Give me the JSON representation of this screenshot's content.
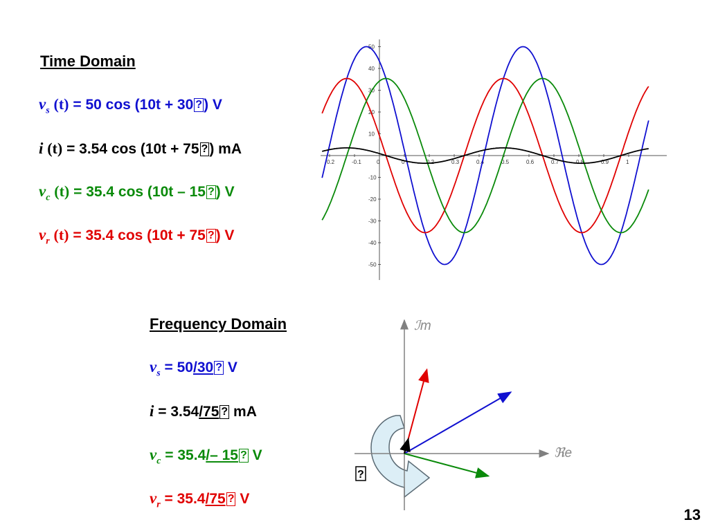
{
  "time_domain": {
    "heading": "Time Domain",
    "vs": {
      "var": "v",
      "sub": "s",
      "arg": "(t)",
      "expr": "= 50 cos (10t + 30",
      "glyph": "?",
      "unit": ") V"
    },
    "i": {
      "var": "i",
      "sub": "",
      "arg": "(t)",
      "expr": "= 3.54 cos (10t + 75",
      "glyph": "?",
      "unit": ") mA"
    },
    "vc": {
      "var": "v",
      "sub": "c",
      "arg": "(t)",
      "expr": "= 35.4 cos (10t – 15",
      "glyph": "?",
      "unit": ") V"
    },
    "vr": {
      "var": "v",
      "sub": "r",
      "arg": "(t)",
      "expr": "= 35.4 cos (10t + 75",
      "glyph": "?",
      "unit": ") V"
    }
  },
  "frequency_domain": {
    "heading": "Frequency Domain",
    "vs": {
      "var": "v",
      "sub": "s",
      "pre": "= 50",
      "angle": "/30",
      "glyph": "?",
      "unit": "V"
    },
    "i": {
      "var": "i",
      "sub": "",
      "pre": "= 3.54",
      "angle": "/75",
      "glyph": "?",
      "unit": "mA"
    },
    "vc": {
      "var": "v",
      "sub": "c",
      "pre": "= 35.4",
      "angle": "/– 15",
      "glyph": "?",
      "unit": "V"
    },
    "vr": {
      "var": "v",
      "sub": "r",
      "pre": "= 35.4",
      "angle": "/75",
      "glyph": "?",
      "unit": "V"
    }
  },
  "colors": {
    "vs": "#1010d0",
    "i": "#000000",
    "vc": "#0a8a0a",
    "vr": "#e00000"
  },
  "waveform_plot": {
    "x_ticks": [
      "0.2",
      "-0.1",
      "0",
      "0",
      "0.2",
      "0.3",
      "0.4",
      "0.5",
      "0.6",
      "0.7",
      "0.8",
      "0.9",
      "1"
    ],
    "y_ticks": [
      "50",
      "40",
      "30",
      "20",
      "10",
      "0",
      "-10",
      "-20",
      "-30",
      "-40",
      "-50"
    ],
    "xlim": [
      -0.23,
      1.08
    ],
    "ylim": [
      -55,
      55
    ],
    "omega": 10,
    "series": [
      {
        "key": "vs",
        "amplitude": 50,
        "phase_deg": 30
      },
      {
        "key": "vr",
        "amplitude": 35.4,
        "phase_deg": 75
      },
      {
        "key": "vc",
        "amplitude": 35.4,
        "phase_deg": -15
      },
      {
        "key": "i",
        "amplitude": 3.54,
        "phase_deg": 75
      }
    ]
  },
  "phasor_diagram": {
    "im_label": "ℐm",
    "re_label": "ℜe",
    "rotation_glyph": "?",
    "phasors": [
      {
        "key": "vr",
        "magnitude": 35.4,
        "angle_deg": 75
      },
      {
        "key": "vs",
        "magnitude": 50,
        "angle_deg": 30
      },
      {
        "key": "vc",
        "magnitude": 35.4,
        "angle_deg": -15
      },
      {
        "key": "i",
        "magnitude": 3.54,
        "angle_deg": 75
      }
    ]
  },
  "page_number": "13"
}
